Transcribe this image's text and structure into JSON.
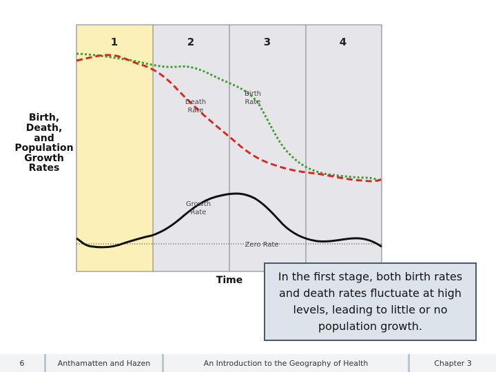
{
  "diagram": {
    "stages": [
      "1",
      "2",
      "3",
      "4"
    ],
    "ylabel": [
      "Birth,",
      "Death,",
      "and",
      "Population",
      "Growth",
      "Rates"
    ],
    "xlabel": "Time",
    "labels": {
      "death_rate": [
        "Death",
        "Rate"
      ],
      "birth_rate": [
        "Birth",
        "Rate"
      ],
      "growth_rate": [
        "Growth",
        "Rate"
      ],
      "zero_rate": "Zero Rate"
    },
    "colors": {
      "birth": "#3aa12b",
      "death": "#d42a22",
      "growth": "#111111",
      "stage1_fill": "#fbf0b8",
      "stage_fill": "#e6e5e9"
    }
  },
  "caption": "In the first stage, both birth rates and death rates fluctuate at high levels, leading to little or no population growth.",
  "footer": {
    "page": "6",
    "authors": "Anthamatten and Hazen",
    "title": "An Introduction to the Geography of Health",
    "chapter": "Chapter 3"
  }
}
